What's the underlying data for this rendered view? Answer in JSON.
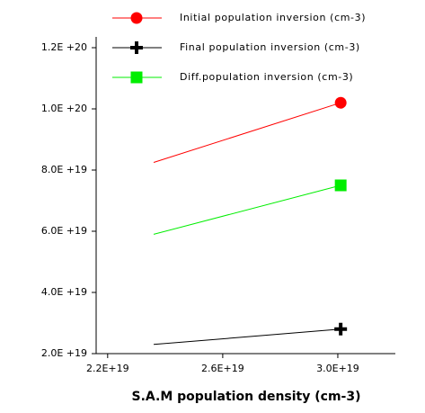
{
  "chart_data": {
    "type": "line",
    "x_label": "S.A.M population density (cm-3)",
    "x": [
      2.36e+19,
      3.01e+19
    ],
    "series": [
      {
        "name": "Initial population inversion  (cm-3)",
        "color": "#ff0000",
        "marker": "circle",
        "values": [
          8.25e+19,
          1.02e+20
        ]
      },
      {
        "name": "Final population inversion  (cm-3)",
        "color": "#000000",
        "marker": "plus",
        "values": [
          2.3e+19,
          2.8e+19
        ]
      },
      {
        "name": "Diff.population inversion  (cm-3)",
        "color": "#00ee00",
        "marker": "square",
        "values": [
          5.9e+19,
          7.5e+19
        ]
      }
    ],
    "xlim": [
      2.16e+19,
      3.2e+19
    ],
    "ylim": [
      2e+19,
      1.2e+20
    ],
    "xticks": [
      {
        "value": 2.2e+19,
        "label": "2.2E+19"
      },
      {
        "value": 2.6e+19,
        "label": "2.6E+19"
      },
      {
        "value": 3e+19,
        "label": "3.0E+19"
      }
    ],
    "yticks": [
      {
        "value": 2e+19,
        "label": "2.0E +19"
      },
      {
        "value": 4e+19,
        "label": "4.0E +19"
      },
      {
        "value": 6e+19,
        "label": "6.0E +19"
      },
      {
        "value": 8e+19,
        "label": "8.0E +19"
      },
      {
        "value": 1e+20,
        "label": "1.0E +20"
      },
      {
        "value": 1.2e+20,
        "label": "1.2E +20"
      }
    ]
  }
}
